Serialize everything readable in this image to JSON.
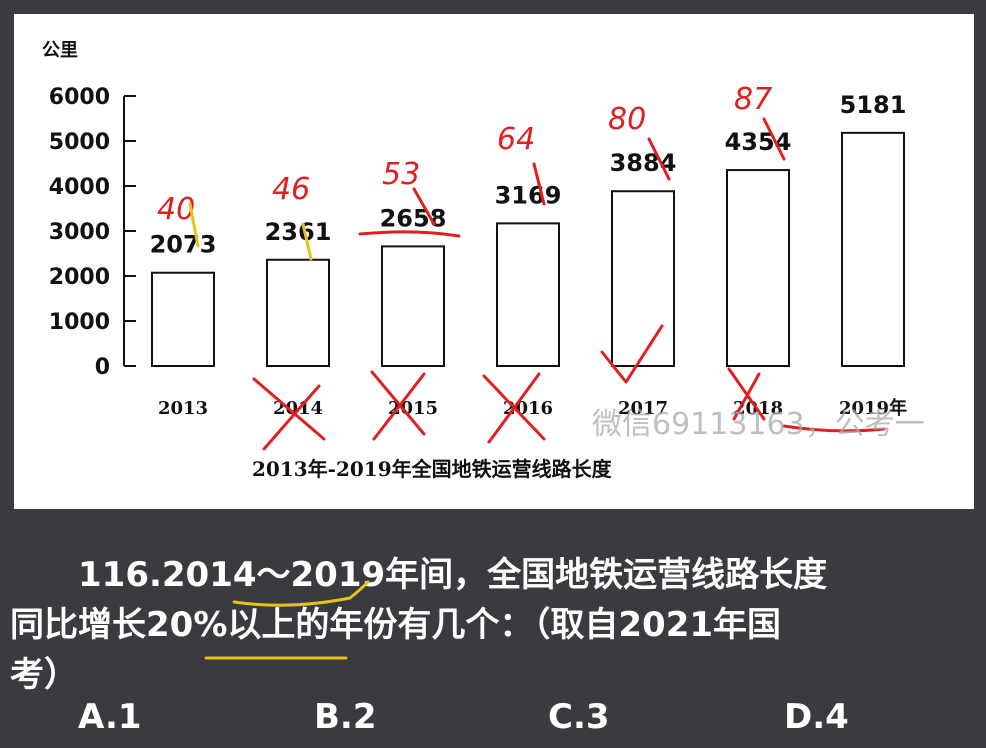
{
  "chart_data": {
    "type": "bar",
    "title": "2013年-2019年全国地铁运营线路长度",
    "ylabel": "公里",
    "ylim": [
      0,
      6000
    ],
    "yticks": [
      0,
      1000,
      2000,
      3000,
      4000,
      5000,
      6000
    ],
    "categories": [
      "2013",
      "2014",
      "2015",
      "2016",
      "2017",
      "2018",
      "2019年"
    ],
    "values": [
      2073,
      2361,
      2658,
      3169,
      3884,
      4354,
      5181
    ],
    "data_labels": [
      "2073",
      "2361",
      "2658",
      "3169",
      "3884",
      "4354",
      "5181"
    ],
    "grid": false,
    "bar_color": "#ffffff",
    "bar_edge_color": "#111111"
  },
  "annotations": {
    "handwritten_numbers": [
      "40",
      "46",
      "53",
      "64",
      "80",
      "87"
    ],
    "ink_color": "#e0201e",
    "highlight_color": "#e8c21a"
  },
  "watermark": "微信69113163，公考一",
  "question": {
    "line1": "116.2014～2019年间，全国地铁运营线路长度",
    "line2": "同比增长20%以上的年份有几个：（取自2021年国",
    "line3": "考）"
  },
  "options": [
    {
      "label": "A.1"
    },
    {
      "label": "B.2"
    },
    {
      "label": "C.3"
    },
    {
      "label": "D.4"
    }
  ]
}
